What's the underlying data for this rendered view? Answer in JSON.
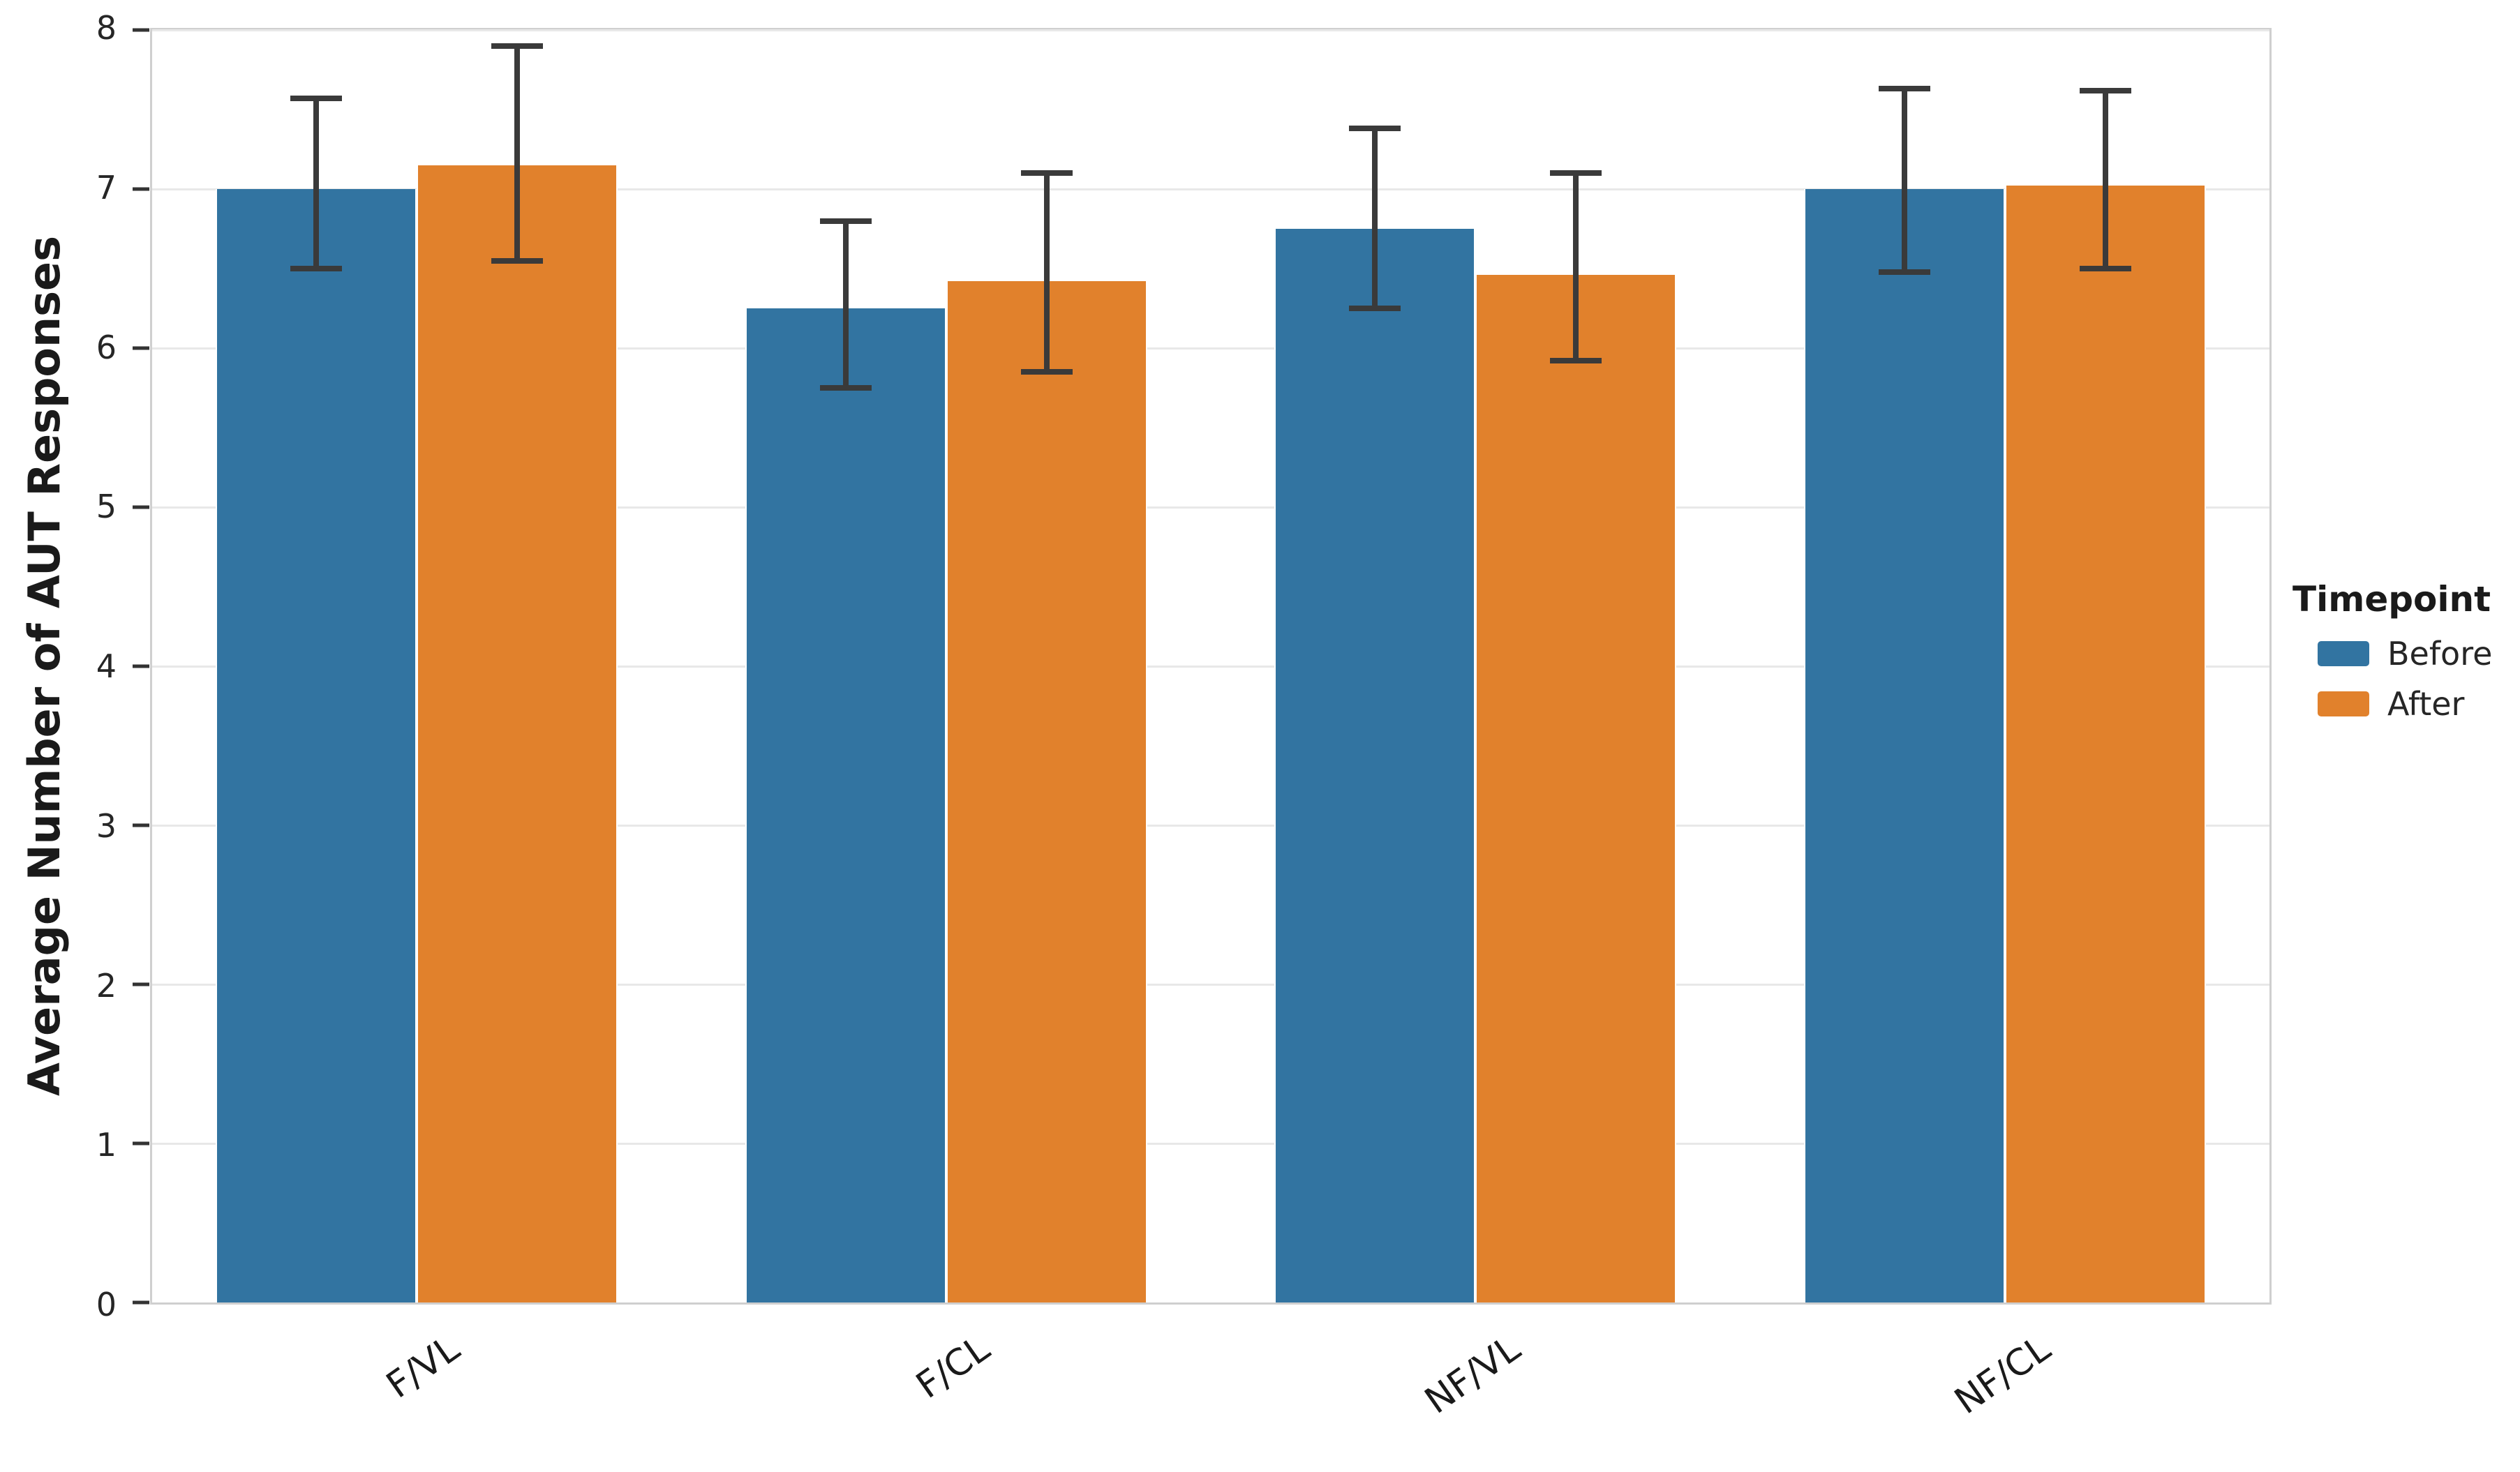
{
  "chart_data": {
    "type": "bar",
    "title": "",
    "xlabel": "",
    "ylabel": "Average Number of AUT Responses",
    "categories": [
      "F/VL",
      "F/CL",
      "NF/VL",
      "NF/CL"
    ],
    "series": [
      {
        "name": "Before",
        "color": "#3274a1",
        "values": [
          7.0,
          6.25,
          6.75,
          7.0
        ],
        "error_low": [
          6.5,
          5.75,
          6.25,
          6.48
        ],
        "error_high": [
          7.57,
          6.8,
          7.38,
          7.63
        ]
      },
      {
        "name": "After",
        "color": "#e1812c",
        "values": [
          7.15,
          6.42,
          6.46,
          7.02
        ],
        "error_low": [
          6.55,
          5.85,
          5.92,
          6.5
        ],
        "error_high": [
          7.9,
          7.1,
          7.1,
          7.62
        ]
      }
    ],
    "ylim": [
      0,
      8
    ],
    "yticks": [
      0,
      1,
      2,
      3,
      4,
      5,
      6,
      7,
      8
    ],
    "grid": true,
    "legend_title": "Timepoint",
    "legend_position": "right",
    "error_bar_color": "#3a3a3a"
  }
}
